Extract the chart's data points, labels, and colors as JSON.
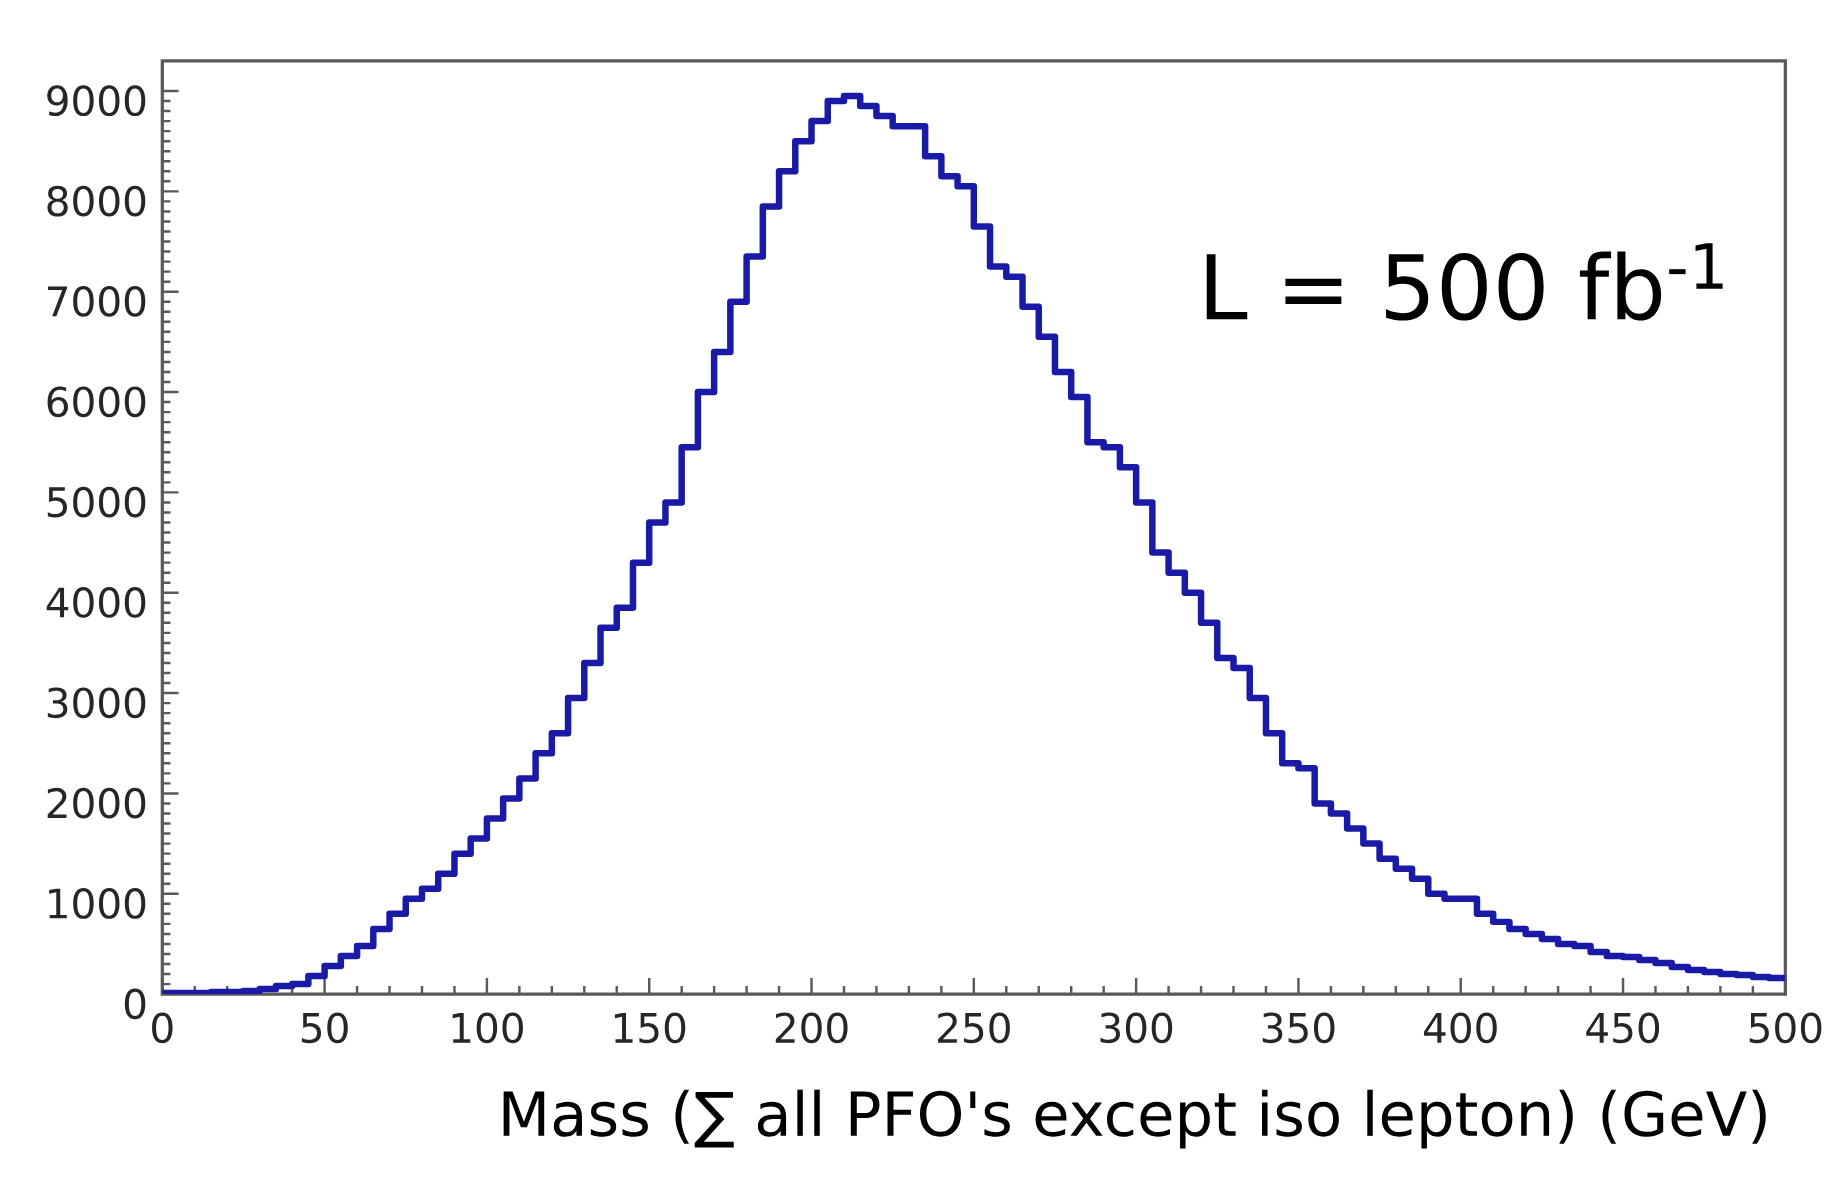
{
  "chart_data": {
    "type": "histogram",
    "xlabel": "Mass (∑ all PFO's except iso lepton)  (GeV)",
    "annotations": [
      "L = 500 fb$^{-1}$"
    ],
    "bins": [
      0,
      5,
      10,
      15,
      20,
      25,
      30,
      35,
      40,
      45,
      50,
      55,
      60,
      65,
      70,
      75,
      80,
      85,
      90,
      95,
      100,
      105,
      110,
      115,
      120,
      125,
      130,
      135,
      140,
      145,
      150,
      155,
      160,
      165,
      170,
      175,
      180,
      185,
      190,
      195,
      200,
      205,
      210,
      215,
      220,
      225,
      230,
      235,
      240,
      245,
      250,
      255,
      260,
      265,
      270,
      275,
      280,
      285,
      290,
      295,
      300,
      305,
      310,
      315,
      320,
      325,
      330,
      335,
      340,
      345,
      350,
      355,
      360,
      365,
      370,
      375,
      380,
      385,
      390,
      395,
      400,
      405,
      410,
      415,
      420,
      425,
      430,
      435,
      440,
      445,
      450,
      455,
      460,
      465,
      470,
      475,
      480,
      485,
      490,
      495,
      500
    ],
    "values": [
      10,
      10,
      10,
      20,
      20,
      30,
      50,
      80,
      100,
      180,
      280,
      380,
      480,
      650,
      800,
      950,
      1050,
      1200,
      1400,
      1550,
      1750,
      1950,
      2150,
      2400,
      2600,
      2950,
      3300,
      3650,
      3850,
      4300,
      4700,
      4900,
      5450,
      6000,
      6400,
      6900,
      7350,
      7850,
      8200,
      8500,
      8700,
      8900,
      8950,
      8850,
      8750,
      8650,
      8650,
      8350,
      8150,
      8050,
      7650,
      7250,
      7150,
      6850,
      6550,
      6200,
      5950,
      5500,
      5450,
      5250,
      4900,
      4400,
      4200,
      4000,
      3700,
      3350,
      3250,
      2950,
      2600,
      2300,
      2250,
      1900,
      1800,
      1650,
      1500,
      1350,
      1250,
      1150,
      1000,
      950,
      950,
      800,
      720,
      650,
      600,
      550,
      500,
      480,
      420,
      380,
      370,
      340,
      310,
      270,
      240,
      220,
      200,
      190,
      170,
      160
    ],
    "color": "#1a1aa6",
    "xlim": [
      0,
      500
    ],
    "ylim": [
      0,
      9300
    ],
    "xticks": [
      0,
      50,
      100,
      150,
      200,
      250,
      300,
      350,
      400,
      450,
      500
    ],
    "yticks": [
      0,
      1000,
      2000,
      3000,
      4000,
      5000,
      6000,
      7000,
      8000,
      9000
    ]
  }
}
